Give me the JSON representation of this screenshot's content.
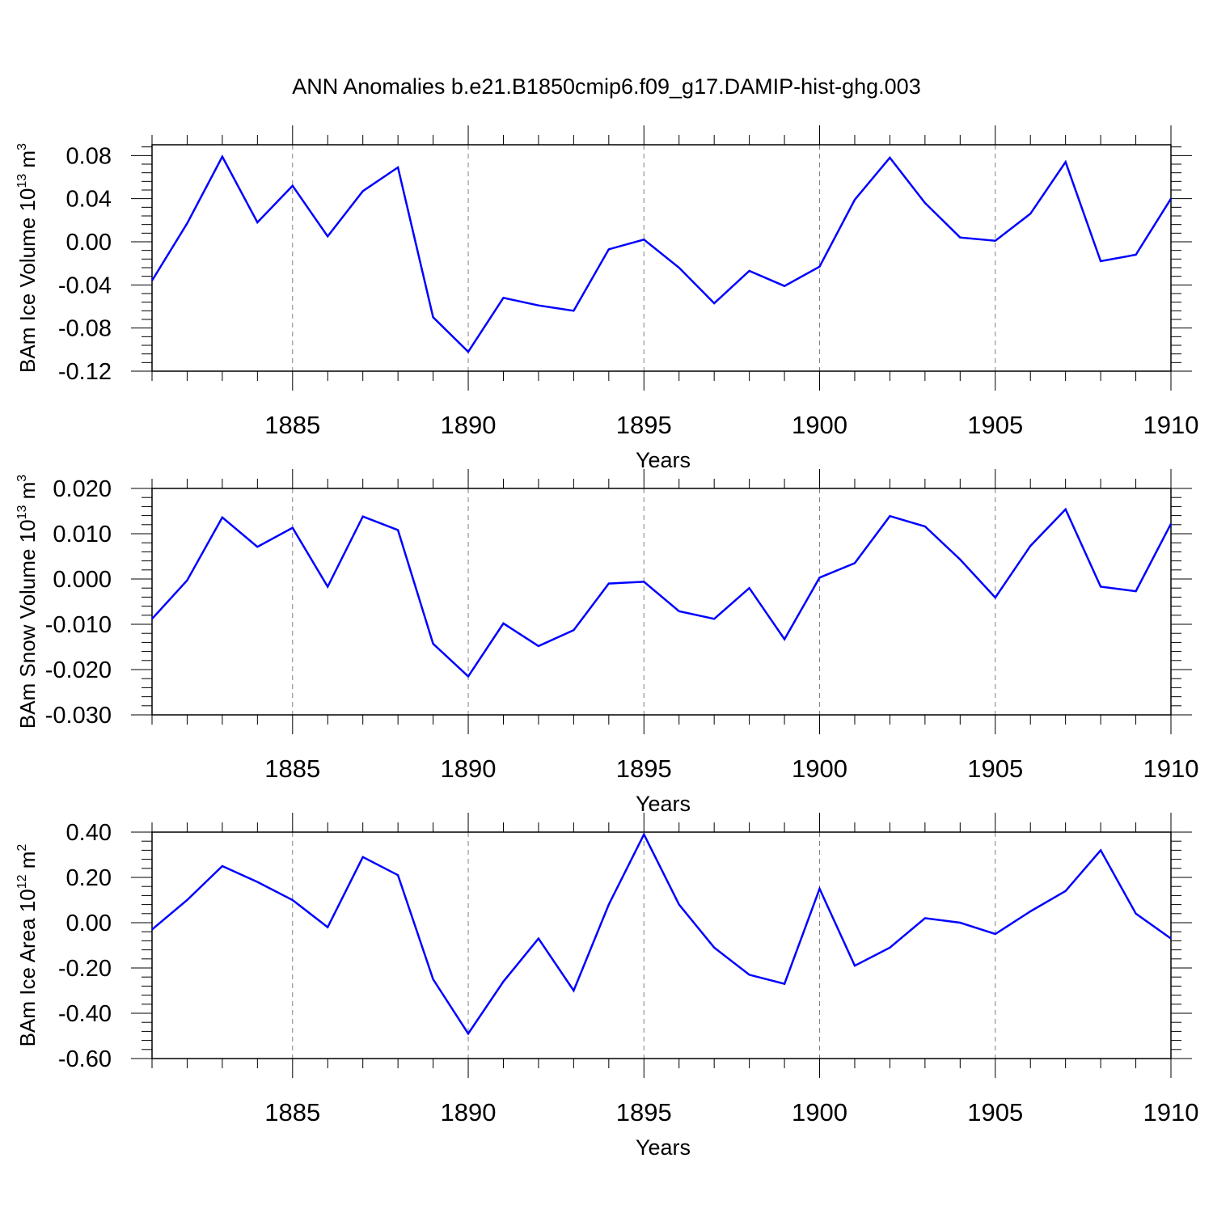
{
  "title": "ANN Anomalies b.e21.B1850cmip6.f09_g17.DAMIP-hist-ghg.003",
  "line_color": "#0000ff",
  "chart_data": [
    {
      "type": "line",
      "ylabel_main": "BAm Ice Volume 10",
      "ylabel_exp": "13",
      "ylabel_unit": " m",
      "ylabel_unit_exp": "3",
      "xlabel": "Years",
      "xlim": [
        1881,
        1910
      ],
      "ylim": [
        -0.12,
        0.09
      ],
      "yticks": [
        "0.08",
        "0.04",
        "0.00",
        "-0.04",
        "-0.08",
        "-0.12"
      ],
      "ytick_values": [
        0.08,
        0.04,
        0.0,
        -0.04,
        -0.08,
        -0.12
      ],
      "xticks": [
        "1885",
        "1890",
        "1895",
        "1900",
        "1905",
        "1910"
      ],
      "xtick_values": [
        1885,
        1890,
        1895,
        1900,
        1905,
        1910
      ],
      "x": [
        1881,
        1882,
        1883,
        1884,
        1885,
        1886,
        1887,
        1888,
        1889,
        1890,
        1891,
        1892,
        1893,
        1894,
        1895,
        1896,
        1897,
        1898,
        1899,
        1900,
        1901,
        1902,
        1903,
        1904,
        1905,
        1906,
        1907,
        1908,
        1909,
        1910
      ],
      "y": [
        -0.036,
        0.017,
        0.079,
        0.018,
        0.052,
        0.005,
        0.047,
        0.069,
        -0.07,
        -0.102,
        -0.052,
        -0.059,
        -0.064,
        -0.007,
        0.002,
        -0.024,
        -0.057,
        -0.027,
        -0.041,
        -0.023,
        0.039,
        0.078,
        0.036,
        0.004,
        0.001,
        0.026,
        0.074,
        -0.018,
        -0.012,
        0.04
      ]
    },
    {
      "type": "line",
      "ylabel_main": "BAm Snow Volume 10",
      "ylabel_exp": "13",
      "ylabel_unit": " m",
      "ylabel_unit_exp": "3",
      "xlabel": "Years",
      "xlim": [
        1881,
        1910
      ],
      "ylim": [
        -0.03,
        0.02
      ],
      "yticks": [
        "0.020",
        "0.010",
        "0.000",
        "-0.010",
        "-0.020",
        "-0.030"
      ],
      "ytick_values": [
        0.02,
        0.01,
        0.0,
        -0.01,
        -0.02,
        -0.03
      ],
      "xticks": [
        "1885",
        "1890",
        "1895",
        "1900",
        "1905",
        "1910"
      ],
      "xtick_values": [
        1885,
        1890,
        1895,
        1900,
        1905,
        1910
      ],
      "x": [
        1881,
        1882,
        1883,
        1884,
        1885,
        1886,
        1887,
        1888,
        1889,
        1890,
        1891,
        1892,
        1893,
        1894,
        1895,
        1896,
        1897,
        1898,
        1899,
        1900,
        1901,
        1902,
        1903,
        1904,
        1905,
        1906,
        1907,
        1908,
        1909,
        1910
      ],
      "y": [
        -0.0088,
        -0.0003,
        0.0136,
        0.0071,
        0.0113,
        -0.0017,
        0.0138,
        0.0108,
        -0.0143,
        -0.0215,
        -0.0098,
        -0.0148,
        -0.0113,
        -0.001,
        -0.0006,
        -0.0071,
        -0.0088,
        -0.002,
        -0.0133,
        0.0003,
        0.0035,
        0.0139,
        0.0116,
        0.0043,
        -0.0041,
        0.0073,
        0.0154,
        -0.0017,
        -0.0027,
        0.0122
      ]
    },
    {
      "type": "line",
      "ylabel_main": "BAm Ice Area 10",
      "ylabel_exp": "12",
      "ylabel_unit": " m",
      "ylabel_unit_exp": "2",
      "xlabel": "Years",
      "xlim": [
        1881,
        1910
      ],
      "ylim": [
        -0.6,
        0.4
      ],
      "yticks": [
        "0.40",
        "0.20",
        "0.00",
        "-0.20",
        "-0.40",
        "-0.60"
      ],
      "ytick_values": [
        0.4,
        0.2,
        0.0,
        -0.2,
        -0.4,
        -0.6
      ],
      "xticks": [
        "1885",
        "1890",
        "1895",
        "1900",
        "1905",
        "1910"
      ],
      "xtick_values": [
        1885,
        1890,
        1895,
        1900,
        1905,
        1910
      ],
      "x": [
        1881,
        1882,
        1883,
        1884,
        1885,
        1886,
        1887,
        1888,
        1889,
        1890,
        1891,
        1892,
        1893,
        1894,
        1895,
        1896,
        1897,
        1898,
        1899,
        1900,
        1901,
        1902,
        1903,
        1904,
        1905,
        1906,
        1907,
        1908,
        1909,
        1910
      ],
      "y": [
        -0.03,
        0.1,
        0.25,
        0.18,
        0.1,
        -0.02,
        0.29,
        0.21,
        -0.25,
        -0.49,
        -0.26,
        -0.07,
        -0.3,
        0.08,
        0.39,
        0.08,
        -0.11,
        -0.23,
        -0.27,
        0.15,
        -0.19,
        -0.11,
        0.02,
        0.0,
        -0.05,
        0.05,
        0.14,
        0.32,
        0.04,
        -0.07
      ]
    }
  ]
}
